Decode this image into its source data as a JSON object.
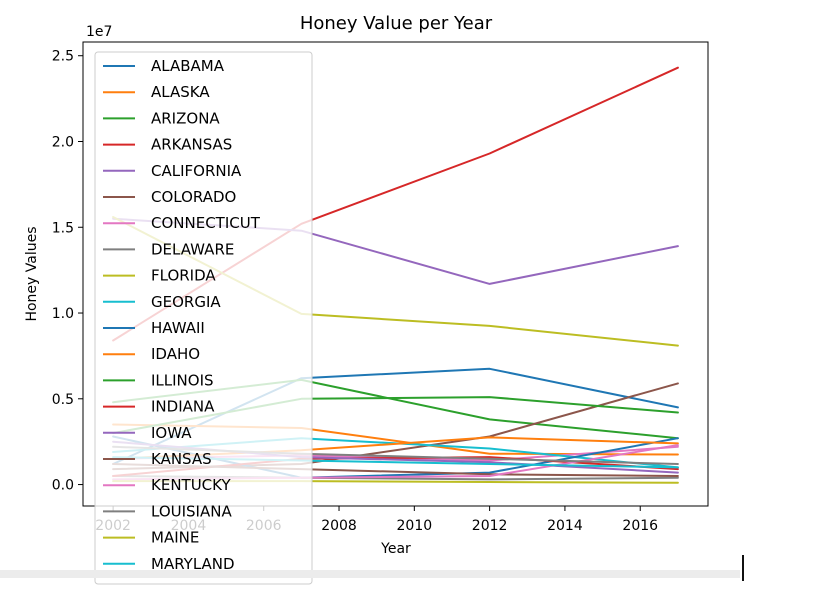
{
  "chart_data": {
    "type": "line",
    "title": "Honey Value per Year",
    "xlabel": "Year",
    "ylabel": "Honey Values",
    "y_multiplier_label": "1e7",
    "x": [
      2002,
      2007,
      2012,
      2017
    ],
    "xlim": [
      2001.2,
      2017.8
    ],
    "ylim": [
      -1250000,
      25800000
    ],
    "x_ticks": [
      2002,
      2004,
      2006,
      2008,
      2010,
      2012,
      2014,
      2016
    ],
    "x_tick_labels": [
      "2002",
      "2004",
      "2006",
      "2008",
      "2010",
      "2012",
      "2014",
      "2016"
    ],
    "y_ticks": [
      0,
      5000000,
      10000000,
      15000000,
      20000000,
      25000000
    ],
    "y_tick_labels": [
      "0.0",
      "0.5",
      "1.0",
      "1.5",
      "2.0",
      "2.5"
    ],
    "grid": false,
    "legend_position": "upper-left",
    "series": [
      {
        "name": "ALABAMA",
        "color": "#1f77b4",
        "values": [
          1200000,
          6200000,
          6750000,
          4500000
        ]
      },
      {
        "name": "ALASKA",
        "color": "#ff7f0e",
        "values": [
          3500000,
          3300000,
          1800000,
          1750000
        ]
      },
      {
        "name": "ARIZONA",
        "color": "#2ca02c",
        "values": [
          4800000,
          6100000,
          3800000,
          2700000
        ]
      },
      {
        "name": "ARKANSAS",
        "color": "#d62728",
        "values": [
          8400000,
          15200000,
          19300000,
          24300000
        ]
      },
      {
        "name": "CALIFORNIA",
        "color": "#9467bd",
        "values": [
          15500000,
          14800000,
          11700000,
          13900000
        ]
      },
      {
        "name": "COLORADO",
        "color": "#8c564b",
        "values": [
          900000,
          1200000,
          2800000,
          5900000
        ]
      },
      {
        "name": "CONNECTICUT",
        "color": "#e377c2",
        "values": [
          1500000,
          1700000,
          1400000,
          2200000
        ]
      },
      {
        "name": "DELAWARE",
        "color": "#7f7f7f",
        "values": [
          500000,
          400000,
          300000,
          400000
        ]
      },
      {
        "name": "FLORIDA",
        "color": "#bcbd22",
        "values": [
          15600000,
          9950000,
          9250000,
          8100000
        ]
      },
      {
        "name": "GEORGIA",
        "color": "#17becf",
        "values": [
          1900000,
          2700000,
          2100000,
          1000000
        ]
      },
      {
        "name": "HAWAII",
        "color": "#1f77b4",
        "values": [
          2800000,
          400000,
          700000,
          2700000
        ]
      },
      {
        "name": "IDAHO",
        "color": "#ff7f0e",
        "values": [
          1500000,
          2000000,
          2750000,
          2400000
        ]
      },
      {
        "name": "ILLINOIS",
        "color": "#2ca02c",
        "values": [
          3000000,
          5000000,
          5100000,
          4200000
        ]
      },
      {
        "name": "INDIANA",
        "color": "#d62728",
        "values": [
          500000,
          1500000,
          1600000,
          900000
        ]
      },
      {
        "name": "IOWA",
        "color": "#9467bd",
        "values": [
          2500000,
          1600000,
          1300000,
          700000
        ]
      },
      {
        "name": "KANSAS",
        "color": "#8c564b",
        "values": [
          1200000,
          900000,
          600000,
          500000
        ]
      },
      {
        "name": "KENTUCKY",
        "color": "#e377c2",
        "values": [
          300000,
          400000,
          500000,
          2300000
        ]
      },
      {
        "name": "LOUISIANA",
        "color": "#7f7f7f",
        "values": [
          2200000,
          1800000,
          1500000,
          1200000
        ]
      },
      {
        "name": "MAINE",
        "color": "#bcbd22",
        "values": [
          200000,
          200000,
          150000,
          100000
        ]
      },
      {
        "name": "MARYLAND",
        "color": "#17becf",
        "values": [
          1600000,
          1400000,
          1200000,
          1000000
        ]
      }
    ]
  }
}
